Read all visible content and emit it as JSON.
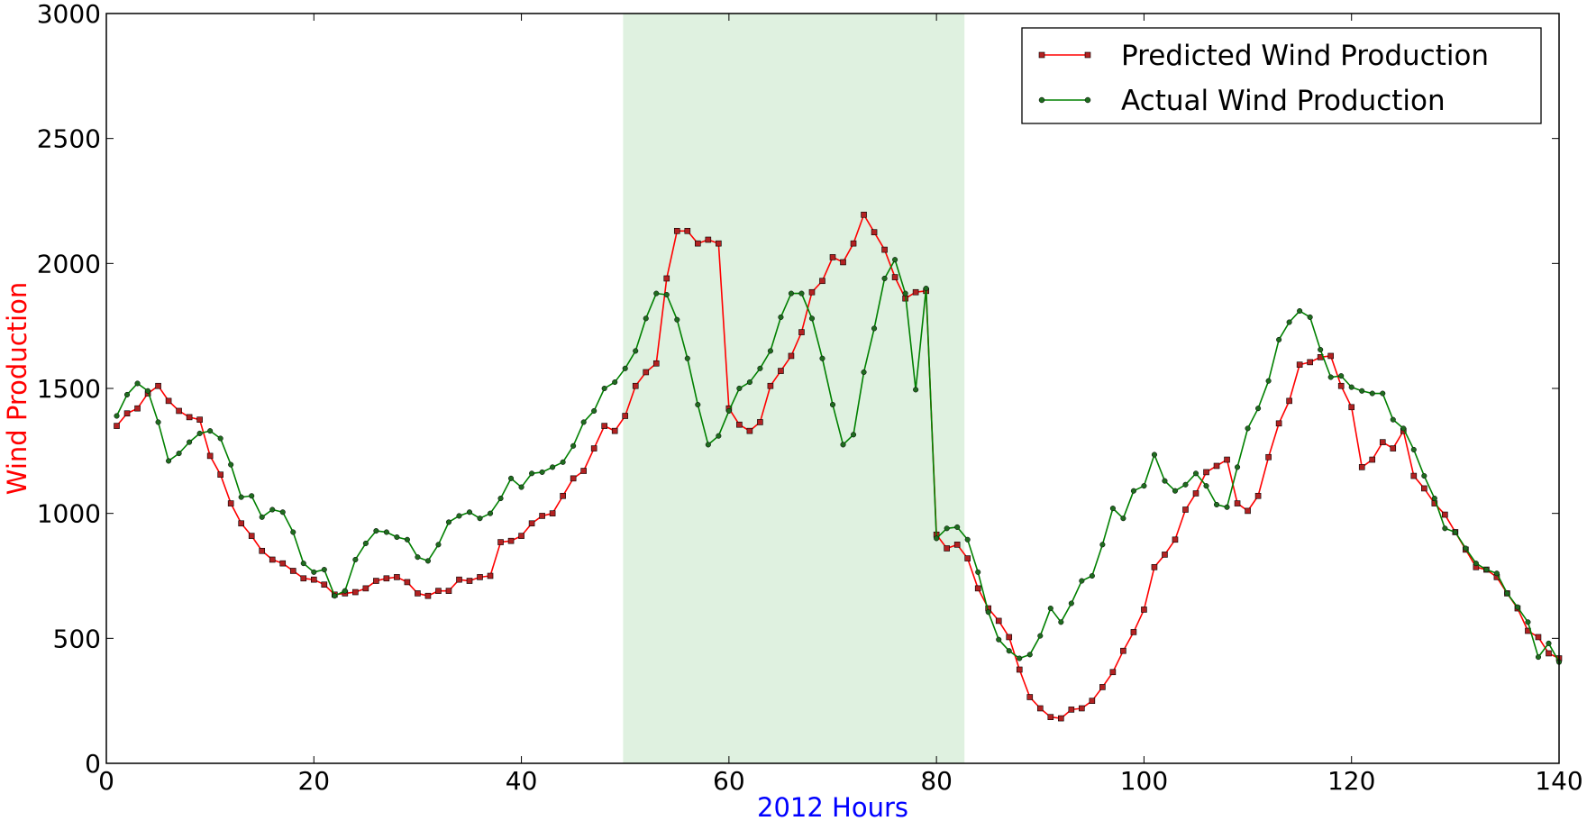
{
  "chart_data": {
    "type": "line",
    "title": "",
    "xlabel": "2012 Hours",
    "ylabel": "Wind Production",
    "xlim": [
      0,
      140
    ],
    "ylim": [
      0,
      3000
    ],
    "x_ticks": [
      0,
      20,
      40,
      60,
      80,
      100,
      120,
      140
    ],
    "y_ticks": [
      0,
      500,
      1000,
      1500,
      2000,
      2500,
      3000
    ],
    "grid": false,
    "legend_position": "top-right",
    "colors": {
      "xlabel": "#0000ff",
      "ylabel": "#ff0000",
      "highlight_band": "#dff1e0"
    },
    "highlight_band": {
      "x_start": 49.8,
      "x_end": 82.7
    },
    "x": [
      1,
      2,
      3,
      4,
      5,
      6,
      7,
      8,
      9,
      10,
      11,
      12,
      13,
      14,
      15,
      16,
      17,
      18,
      19,
      20,
      21,
      22,
      23,
      24,
      25,
      26,
      27,
      28,
      29,
      30,
      31,
      32,
      33,
      34,
      35,
      36,
      37,
      38,
      39,
      40,
      41,
      42,
      43,
      44,
      45,
      46,
      47,
      48,
      49,
      50,
      51,
      52,
      53,
      54,
      55,
      56,
      57,
      58,
      59,
      60,
      61,
      62,
      63,
      64,
      65,
      66,
      67,
      68,
      69,
      70,
      71,
      72,
      73,
      74,
      75,
      76,
      77,
      78,
      79,
      80,
      81,
      82,
      83,
      84,
      85,
      86,
      87,
      88,
      89,
      90,
      91,
      92,
      93,
      94,
      95,
      96,
      97,
      98,
      99,
      100,
      101,
      102,
      103,
      104,
      105,
      106,
      107,
      108,
      109,
      110,
      111,
      112,
      113,
      114,
      115,
      116,
      117,
      118,
      119,
      120,
      121,
      122,
      123,
      124,
      125,
      126,
      127,
      128,
      129,
      130,
      131,
      132,
      133,
      134,
      135,
      136,
      137,
      138,
      139,
      140
    ],
    "series": [
      {
        "name": "Predicted Wind Production",
        "color": "#ff0000",
        "marker": "square",
        "marker_fill": "#b22222",
        "values": [
          1350,
          1400,
          1420,
          1480,
          1510,
          1450,
          1410,
          1385,
          1375,
          1230,
          1155,
          1040,
          960,
          910,
          850,
          815,
          800,
          770,
          740,
          735,
          715,
          675,
          680,
          685,
          700,
          730,
          740,
          745,
          725,
          680,
          670,
          690,
          690,
          735,
          730,
          745,
          750,
          885,
          890,
          910,
          960,
          990,
          1000,
          1070,
          1140,
          1170,
          1260,
          1350,
          1330,
          1390,
          1510,
          1565,
          1600,
          1940,
          2130,
          2130,
          2080,
          2095,
          2080,
          1420,
          1355,
          1330,
          1365,
          1510,
          1570,
          1630,
          1725,
          1885,
          1930,
          2025,
          2005,
          2080,
          2195,
          2125,
          2055,
          1945,
          1860,
          1885,
          1890,
          915,
          860,
          875,
          820,
          700,
          620,
          570,
          505,
          375,
          265,
          220,
          185,
          180,
          215,
          220,
          250,
          305,
          365,
          450,
          525,
          615,
          785,
          835,
          895,
          1015,
          1080,
          1165,
          1190,
          1215,
          1040,
          1010,
          1070,
          1225,
          1360,
          1450,
          1595,
          1605,
          1625,
          1630,
          1510,
          1425,
          1185,
          1215,
          1285,
          1260,
          1330,
          1150,
          1100,
          1040,
          995,
          925,
          855,
          785,
          775,
          745,
          680,
          620,
          530,
          505,
          440,
          420
        ]
      },
      {
        "name": "Actual Wind Production",
        "color": "#008000",
        "marker": "circle",
        "marker_fill": "#1f6b1f",
        "values": [
          1390,
          1475,
          1520,
          1490,
          1365,
          1210,
          1240,
          1285,
          1320,
          1330,
          1300,
          1195,
          1065,
          1070,
          985,
          1015,
          1005,
          925,
          800,
          765,
          775,
          670,
          690,
          815,
          880,
          930,
          925,
          905,
          895,
          825,
          810,
          875,
          965,
          990,
          1005,
          980,
          1000,
          1060,
          1140,
          1105,
          1160,
          1165,
          1185,
          1205,
          1270,
          1365,
          1410,
          1500,
          1525,
          1580,
          1650,
          1780,
          1880,
          1875,
          1775,
          1620,
          1435,
          1275,
          1310,
          1410,
          1500,
          1525,
          1580,
          1650,
          1785,
          1880,
          1880,
          1780,
          1620,
          1435,
          1275,
          1315,
          1565,
          1740,
          1940,
          2015,
          1880,
          1495,
          1900,
          900,
          940,
          945,
          895,
          765,
          605,
          495,
          450,
          420,
          435,
          510,
          620,
          565,
          640,
          730,
          750,
          875,
          1020,
          980,
          1090,
          1110,
          1235,
          1130,
          1090,
          1115,
          1160,
          1110,
          1035,
          1025,
          1185,
          1340,
          1420,
          1530,
          1695,
          1765,
          1810,
          1785,
          1655,
          1545,
          1550,
          1505,
          1490,
          1480,
          1480,
          1375,
          1340,
          1255,
          1150,
          1060,
          940,
          925,
          860,
          800,
          775,
          760,
          680,
          625,
          565,
          425,
          480,
          405
        ]
      }
    ]
  }
}
